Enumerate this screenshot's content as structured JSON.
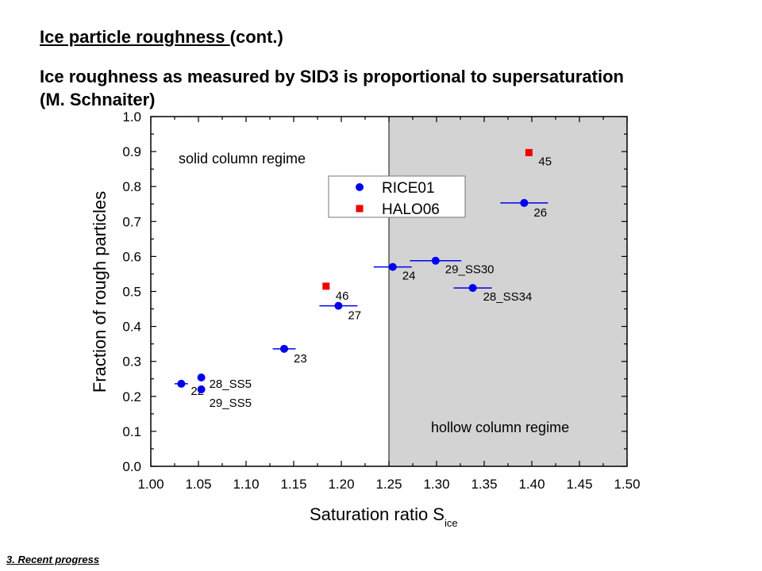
{
  "slide": {
    "title_underlined": "Ice particle roughness ",
    "title_rest": "(cont.)",
    "subtitle": "Ice roughness as measured by SID3 is proportional to supersaturation (M. Schnaiter)",
    "footer": "3. Recent progress"
  },
  "chart_data": {
    "type": "scatter",
    "xlabel": "Saturation ratio S",
    "xlabel_subscript": "ice",
    "ylabel": "Fraction of rough particles",
    "xlim": [
      1.0,
      1.5
    ],
    "ylim": [
      0.0,
      1.0
    ],
    "x_ticks": [
      "1.00",
      "1.05",
      "1.10",
      "1.15",
      "1.20",
      "1.25",
      "1.30",
      "1.35",
      "1.40",
      "1.45",
      "1.50"
    ],
    "y_ticks": [
      "0.0",
      "0.1",
      "0.2",
      "0.3",
      "0.4",
      "0.5",
      "0.6",
      "0.7",
      "0.8",
      "0.9",
      "1.0"
    ],
    "regions": [
      {
        "label": "solid column regime",
        "x_range": [
          1.0,
          1.25
        ],
        "color": "#ffffff"
      },
      {
        "label": "hollow column regime",
        "x_range": [
          1.25,
          1.5
        ],
        "color": "#d3d3d3"
      }
    ],
    "legend": {
      "position": "top-center"
    },
    "series": [
      {
        "name": "RICE01",
        "marker": "circle",
        "color": "#0000ee",
        "points": [
          {
            "x": 1.032,
            "y": 0.236,
            "xerr": 0.007,
            "label": "22"
          },
          {
            "x": 1.053,
            "y": 0.254,
            "xerr": 0.0,
            "label": "28_SS5"
          },
          {
            "x": 1.053,
            "y": 0.22,
            "xerr": 0.0,
            "label": "29_SS5"
          },
          {
            "x": 1.14,
            "y": 0.336,
            "xerr": 0.012,
            "label": "23"
          },
          {
            "x": 1.197,
            "y": 0.459,
            "xerr": 0.02,
            "label": "27"
          },
          {
            "x": 1.254,
            "y": 0.57,
            "xerr": 0.02,
            "label": "24"
          },
          {
            "x": 1.299,
            "y": 0.588,
            "xerr": 0.027,
            "label": "29_SS30"
          },
          {
            "x": 1.338,
            "y": 0.51,
            "xerr": 0.02,
            "label": "28_SS34"
          },
          {
            "x": 1.392,
            "y": 0.753,
            "xerr": 0.025,
            "label": "26"
          }
        ]
      },
      {
        "name": "HALO06",
        "marker": "square",
        "color": "#ee0000",
        "points": [
          {
            "x": 1.184,
            "y": 0.515,
            "label": "46"
          },
          {
            "x": 1.397,
            "y": 0.897,
            "label": "45"
          }
        ]
      }
    ]
  }
}
